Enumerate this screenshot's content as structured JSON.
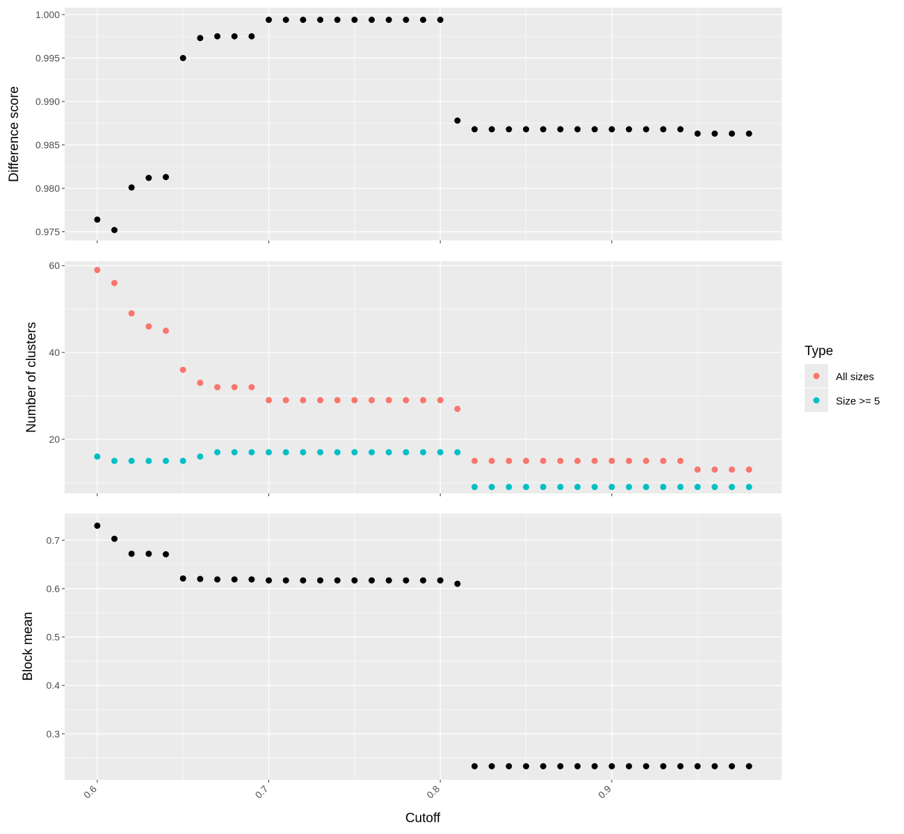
{
  "chart_data": [
    {
      "type": "scatter",
      "ylabel": "Difference score",
      "ylim": [
        0.974,
        1.0008
      ],
      "yticks": [
        "0.975",
        "0.980",
        "0.985",
        "0.990",
        "0.995",
        "1.000"
      ],
      "grid": true,
      "series": [
        {
          "color": "#000000",
          "points": [
            [
              0.6,
              0.9764
            ],
            [
              0.61,
              0.9752
            ],
            [
              0.62,
              0.9801
            ],
            [
              0.63,
              0.9812
            ],
            [
              0.64,
              0.9813
            ],
            [
              0.65,
              0.995
            ],
            [
              0.66,
              0.9973
            ],
            [
              0.67,
              0.9975
            ],
            [
              0.68,
              0.9975
            ],
            [
              0.69,
              0.9975
            ],
            [
              0.7,
              0.9994
            ],
            [
              0.71,
              0.9994
            ],
            [
              0.72,
              0.9994
            ],
            [
              0.73,
              0.9994
            ],
            [
              0.74,
              0.9994
            ],
            [
              0.75,
              0.9994
            ],
            [
              0.76,
              0.9994
            ],
            [
              0.77,
              0.9994
            ],
            [
              0.78,
              0.9994
            ],
            [
              0.79,
              0.9994
            ],
            [
              0.8,
              0.9994
            ],
            [
              0.81,
              0.9878
            ],
            [
              0.82,
              0.9868
            ],
            [
              0.83,
              0.9868
            ],
            [
              0.84,
              0.9868
            ],
            [
              0.85,
              0.9868
            ],
            [
              0.86,
              0.9868
            ],
            [
              0.87,
              0.9868
            ],
            [
              0.88,
              0.9868
            ],
            [
              0.89,
              0.9868
            ],
            [
              0.9,
              0.9868
            ],
            [
              0.91,
              0.9868
            ],
            [
              0.92,
              0.9868
            ],
            [
              0.93,
              0.9868
            ],
            [
              0.94,
              0.9868
            ],
            [
              0.95,
              0.9863
            ],
            [
              0.96,
              0.9863
            ],
            [
              0.97,
              0.9863
            ],
            [
              0.98,
              0.9863
            ]
          ]
        }
      ]
    },
    {
      "type": "scatter",
      "ylabel": "Number of clusters",
      "ylim": [
        7.5,
        61
      ],
      "yticks": [
        "20",
        "40",
        "60"
      ],
      "grid": true,
      "legend": {
        "title": "Type",
        "placement": "right",
        "entries": [
          {
            "label": "All sizes",
            "color": "#F8766D"
          },
          {
            "label": "Size >= 5",
            "color": "#00BFC4"
          }
        ]
      },
      "series": [
        {
          "name": "All sizes",
          "color": "#F8766D",
          "points": [
            [
              0.6,
              59
            ],
            [
              0.61,
              56
            ],
            [
              0.62,
              49
            ],
            [
              0.63,
              46
            ],
            [
              0.64,
              45
            ],
            [
              0.65,
              36
            ],
            [
              0.66,
              33
            ],
            [
              0.67,
              32
            ],
            [
              0.68,
              32
            ],
            [
              0.69,
              32
            ],
            [
              0.7,
              29
            ],
            [
              0.71,
              29
            ],
            [
              0.72,
              29
            ],
            [
              0.73,
              29
            ],
            [
              0.74,
              29
            ],
            [
              0.75,
              29
            ],
            [
              0.76,
              29
            ],
            [
              0.77,
              29
            ],
            [
              0.78,
              29
            ],
            [
              0.79,
              29
            ],
            [
              0.8,
              29
            ],
            [
              0.81,
              27
            ],
            [
              0.82,
              15
            ],
            [
              0.83,
              15
            ],
            [
              0.84,
              15
            ],
            [
              0.85,
              15
            ],
            [
              0.86,
              15
            ],
            [
              0.87,
              15
            ],
            [
              0.88,
              15
            ],
            [
              0.89,
              15
            ],
            [
              0.9,
              15
            ],
            [
              0.91,
              15
            ],
            [
              0.92,
              15
            ],
            [
              0.93,
              15
            ],
            [
              0.94,
              15
            ],
            [
              0.95,
              13
            ],
            [
              0.96,
              13
            ],
            [
              0.97,
              13
            ],
            [
              0.98,
              13
            ]
          ]
        },
        {
          "name": "Size >= 5",
          "color": "#00BFC4",
          "points": [
            [
              0.6,
              16
            ],
            [
              0.61,
              15
            ],
            [
              0.62,
              15
            ],
            [
              0.63,
              15
            ],
            [
              0.64,
              15
            ],
            [
              0.65,
              15
            ],
            [
              0.66,
              16
            ],
            [
              0.67,
              17
            ],
            [
              0.68,
              17
            ],
            [
              0.69,
              17
            ],
            [
              0.7,
              17
            ],
            [
              0.71,
              17
            ],
            [
              0.72,
              17
            ],
            [
              0.73,
              17
            ],
            [
              0.74,
              17
            ],
            [
              0.75,
              17
            ],
            [
              0.76,
              17
            ],
            [
              0.77,
              17
            ],
            [
              0.78,
              17
            ],
            [
              0.79,
              17
            ],
            [
              0.8,
              17
            ],
            [
              0.81,
              17
            ],
            [
              0.82,
              9
            ],
            [
              0.83,
              9
            ],
            [
              0.84,
              9
            ],
            [
              0.85,
              9
            ],
            [
              0.86,
              9
            ],
            [
              0.87,
              9
            ],
            [
              0.88,
              9
            ],
            [
              0.89,
              9
            ],
            [
              0.9,
              9
            ],
            [
              0.91,
              9
            ],
            [
              0.92,
              9
            ],
            [
              0.93,
              9
            ],
            [
              0.94,
              9
            ],
            [
              0.95,
              9
            ],
            [
              0.96,
              9
            ],
            [
              0.97,
              9
            ],
            [
              0.98,
              9
            ]
          ]
        }
      ]
    },
    {
      "type": "scatter",
      "ylabel": "Block mean",
      "xlabel": "Cutoff",
      "ylim": [
        0.205,
        0.755
      ],
      "yticks": [
        "0.3",
        "0.4",
        "0.5",
        "0.6",
        "0.7"
      ],
      "grid": true,
      "series": [
        {
          "color": "#000000",
          "points": [
            [
              0.6,
              0.73
            ],
            [
              0.61,
              0.703
            ],
            [
              0.62,
              0.672
            ],
            [
              0.63,
              0.672
            ],
            [
              0.64,
              0.671
            ],
            [
              0.65,
              0.621
            ],
            [
              0.66,
              0.62
            ],
            [
              0.67,
              0.619
            ],
            [
              0.68,
              0.619
            ],
            [
              0.69,
              0.619
            ],
            [
              0.7,
              0.617
            ],
            [
              0.71,
              0.617
            ],
            [
              0.72,
              0.617
            ],
            [
              0.73,
              0.617
            ],
            [
              0.74,
              0.617
            ],
            [
              0.75,
              0.617
            ],
            [
              0.76,
              0.617
            ],
            [
              0.77,
              0.617
            ],
            [
              0.78,
              0.617
            ],
            [
              0.79,
              0.617
            ],
            [
              0.8,
              0.617
            ],
            [
              0.81,
              0.61
            ],
            [
              0.82,
              0.233
            ],
            [
              0.83,
              0.233
            ],
            [
              0.84,
              0.233
            ],
            [
              0.85,
              0.233
            ],
            [
              0.86,
              0.233
            ],
            [
              0.87,
              0.233
            ],
            [
              0.88,
              0.233
            ],
            [
              0.89,
              0.233
            ],
            [
              0.9,
              0.233
            ],
            [
              0.91,
              0.233
            ],
            [
              0.92,
              0.233
            ],
            [
              0.93,
              0.233
            ],
            [
              0.94,
              0.233
            ],
            [
              0.95,
              0.233
            ],
            [
              0.96,
              0.233
            ],
            [
              0.97,
              0.233
            ],
            [
              0.98,
              0.233
            ]
          ]
        }
      ]
    }
  ],
  "x_axis": {
    "label": "Cutoff",
    "xlim": [
      0.581,
      0.999
    ],
    "ticks": [
      "0.6",
      "0.7",
      "0.8",
      "0.9"
    ]
  },
  "colors": {
    "panel_background": "#EBEBEB",
    "grid_major": "#FFFFFF",
    "tick_text": "#4D4D4D",
    "all_sizes": "#F8766D",
    "size_ge_5": "#00BFC4",
    "points": "#000000"
  }
}
